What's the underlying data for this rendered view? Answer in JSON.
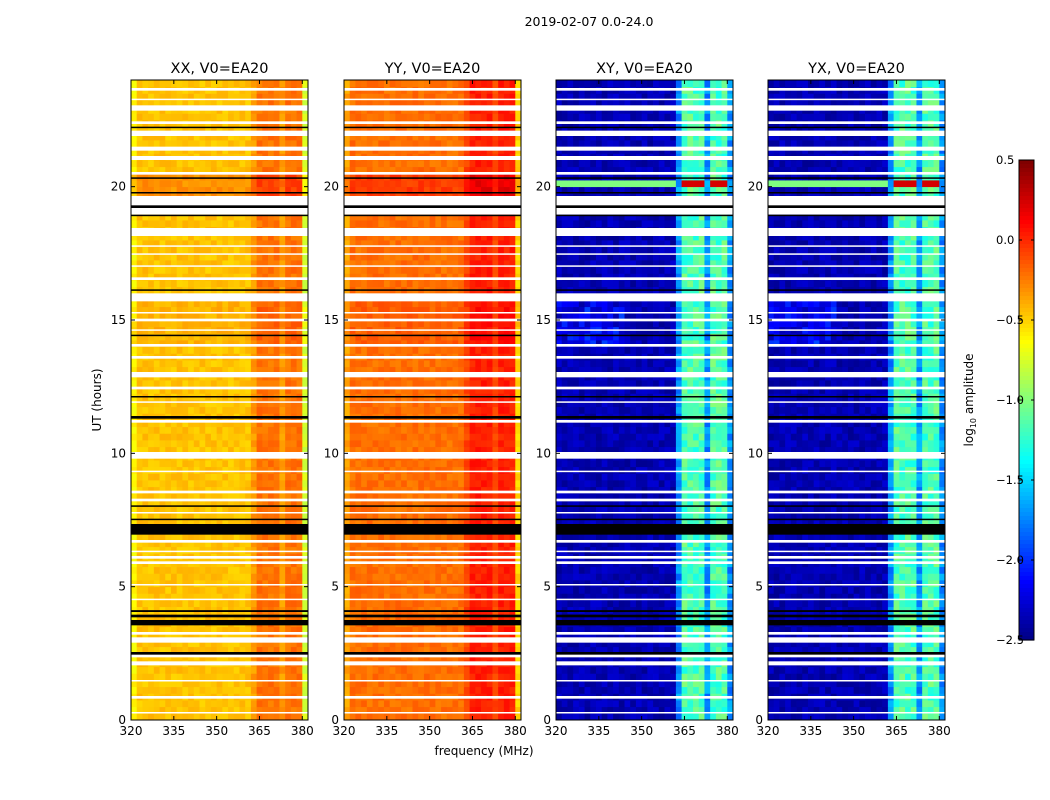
{
  "figure_title": "2019-02-07 0.0-24.0",
  "chart_data": {
    "type": "heatmap",
    "suptitle": "2019-02-07 0.0-24.0",
    "xlabel": "frequency (MHz)",
    "ylabel": "UT (hours)",
    "xlim": [
      320,
      382
    ],
    "ylim": [
      0,
      24
    ],
    "xticks": [
      "320",
      "335",
      "350",
      "365",
      "380"
    ],
    "xtick_values": [
      320,
      335,
      350,
      365,
      380
    ],
    "yticks": [
      "0",
      "5",
      "10",
      "15",
      "20"
    ],
    "ytick_values": [
      0,
      5,
      10,
      15,
      20
    ],
    "panels": [
      {
        "title": "XX, V0=EA20",
        "kind": "parallel",
        "base_log_amp": -0.45
      },
      {
        "title": "YY, V0=EA20",
        "kind": "parallel",
        "base_log_amp": -0.2
      },
      {
        "title": "XY, V0=EA20",
        "kind": "cross",
        "base_log_amp": -2.35
      },
      {
        "title": "YX, V0=EA20",
        "kind": "cross",
        "base_log_amp": -2.35
      }
    ],
    "bright_band_mhz": [
      [
        363.5,
        367.5
      ],
      [
        368.5,
        372.5
      ],
      [
        373.5,
        377.0
      ],
      [
        378.0,
        380.5
      ]
    ],
    "gap_rows_hours": [
      [
        0.25,
        0.3
      ],
      [
        0.8,
        0.9
      ],
      [
        1.45,
        1.5
      ],
      [
        2.05,
        2.2
      ],
      [
        2.35,
        2.5
      ],
      [
        2.9,
        3.1
      ],
      [
        3.2,
        3.3
      ],
      [
        4.5,
        4.55
      ],
      [
        5.05,
        5.1
      ],
      [
        5.85,
        5.95
      ],
      [
        6.05,
        6.15
      ],
      [
        6.3,
        6.35
      ],
      [
        6.65,
        6.75
      ],
      [
        7.75,
        7.8
      ],
      [
        8.2,
        8.3
      ],
      [
        8.5,
        8.6
      ],
      [
        9.3,
        9.35
      ],
      [
        9.8,
        10.05
      ],
      [
        11.15,
        11.25
      ],
      [
        11.9,
        11.95
      ],
      [
        12.4,
        12.5
      ],
      [
        12.85,
        13.05
      ],
      [
        13.55,
        13.65
      ],
      [
        14.0,
        14.1
      ],
      [
        14.6,
        14.65
      ],
      [
        14.95,
        15.05
      ],
      [
        15.25,
        15.3
      ],
      [
        15.7,
        16.0
      ],
      [
        16.5,
        16.6
      ],
      [
        17.0,
        17.05
      ],
      [
        17.45,
        17.5
      ],
      [
        17.75,
        17.8
      ],
      [
        18.15,
        18.45
      ],
      [
        18.95,
        19.65
      ],
      [
        20.45,
        20.55
      ],
      [
        21.0,
        21.15
      ],
      [
        21.35,
        21.5
      ],
      [
        21.9,
        22.1
      ],
      [
        22.35,
        22.45
      ],
      [
        22.85,
        23.05
      ],
      [
        23.25,
        23.3
      ],
      [
        23.6,
        23.7
      ]
    ],
    "black_rows_hours": [
      [
        2.45,
        2.55
      ],
      [
        3.55,
        3.75
      ],
      [
        3.85,
        3.95
      ],
      [
        4.05,
        4.12
      ],
      [
        6.95,
        7.35
      ],
      [
        7.5,
        7.55
      ],
      [
        8.0,
        8.05
      ],
      [
        11.3,
        11.4
      ],
      [
        12.1,
        12.15
      ],
      [
        14.4,
        14.45
      ],
      [
        16.1,
        16.15
      ],
      [
        18.9,
        18.95
      ],
      [
        19.2,
        19.3
      ],
      [
        19.75,
        19.8
      ],
      [
        20.3,
        20.35
      ],
      [
        22.2,
        22.25
      ]
    ],
    "colorbar": {
      "label": "log",
      "label_sub": "10",
      "label_rest": " amplitude",
      "range": [
        -2.5,
        0.5
      ],
      "colormap": "jet",
      "ticks": [
        "0.5",
        "0.0",
        "−0.5",
        "−1.0",
        "−1.5",
        "−2.0",
        "−2.5"
      ],
      "tick_values": [
        0.5,
        0.0,
        -0.5,
        -1.0,
        -1.5,
        -2.0,
        -2.5
      ]
    }
  }
}
